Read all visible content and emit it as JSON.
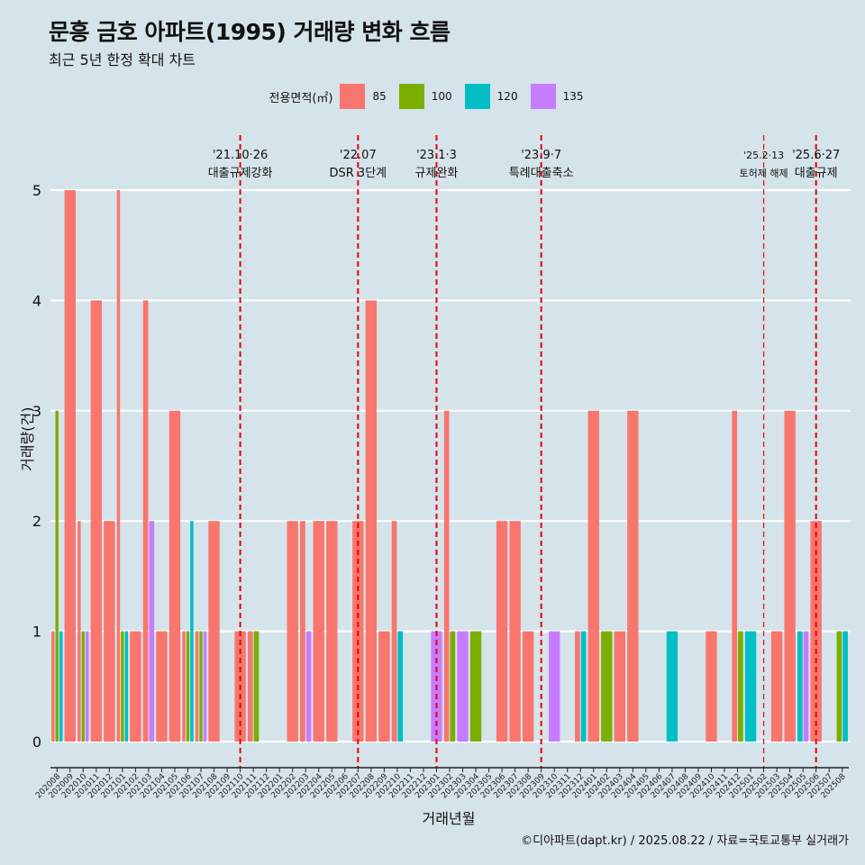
{
  "title": "문흥 금호 아파트(1995) 거래량 변화 흐름",
  "subtitle": "최근 5년 한정 확대 차트",
  "caption": "©디아파트(dapt.kr) / 2025.08.22 / 자료=국토교통부 실거래가",
  "legend": {
    "title": "전용면적(㎡)",
    "items": [
      {
        "label": "85",
        "color": "#F8766D"
      },
      {
        "label": "100",
        "color": "#7CAE00"
      },
      {
        "label": "120",
        "color": "#00BFC4"
      },
      {
        "label": "135",
        "color": "#C77CFF"
      }
    ]
  },
  "chart_data": {
    "type": "bar",
    "xlabel": "거래년월",
    "ylabel": "거래량(건)",
    "ylim": [
      0,
      5
    ],
    "yticks": [
      0,
      1,
      2,
      3,
      4,
      5
    ],
    "grid": true,
    "legend_position": "top",
    "categories": [
      "202008",
      "202009",
      "202010",
      "202011",
      "202012",
      "202101",
      "202102",
      "202103",
      "202104",
      "202105",
      "202106",
      "202107",
      "202108",
      "202109",
      "202110",
      "202111",
      "202112",
      "202201",
      "202202",
      "202203",
      "202204",
      "202205",
      "202206",
      "202207",
      "202208",
      "202209",
      "202210",
      "202211",
      "202212",
      "202301",
      "202302",
      "202303",
      "202304",
      "202305",
      "202306",
      "202307",
      "202308",
      "202309",
      "202310",
      "202311",
      "202312",
      "202401",
      "202402",
      "202403",
      "202404",
      "202405",
      "202406",
      "202407",
      "202408",
      "202409",
      "202410",
      "202411",
      "202412",
      "202501",
      "202502",
      "202503",
      "202504",
      "202505",
      "202506",
      "202507",
      "202508"
    ],
    "series": [
      {
        "name": "85",
        "color": "#F8766D",
        "values": [
          1,
          5,
          2,
          4,
          2,
          5,
          1,
          4,
          1,
          3,
          1,
          1,
          2,
          0,
          1,
          1,
          0,
          0,
          2,
          2,
          2,
          2,
          0,
          2,
          4,
          1,
          2,
          0,
          0,
          0,
          3,
          0,
          0,
          0,
          2,
          2,
          1,
          0,
          0,
          0,
          1,
          3,
          0,
          1,
          3,
          0,
          0,
          0,
          0,
          0,
          1,
          0,
          3,
          0,
          0,
          1,
          3,
          0,
          2,
          0,
          0
        ]
      },
      {
        "name": "100",
        "color": "#7CAE00",
        "values": [
          3,
          0,
          1,
          0,
          0,
          1,
          0,
          0,
          0,
          0,
          1,
          1,
          0,
          0,
          0,
          1,
          0,
          0,
          0,
          0,
          0,
          0,
          0,
          0,
          0,
          0,
          0,
          0,
          0,
          0,
          1,
          0,
          1,
          0,
          0,
          0,
          0,
          0,
          0,
          0,
          0,
          0,
          1,
          0,
          0,
          0,
          0,
          0,
          0,
          0,
          0,
          0,
          1,
          0,
          0,
          0,
          0,
          0,
          0,
          0,
          1
        ]
      },
      {
        "name": "120",
        "color": "#00BFC4",
        "values": [
          1,
          0,
          0,
          0,
          0,
          1,
          0,
          0,
          0,
          0,
          2,
          0,
          0,
          0,
          0,
          0,
          0,
          0,
          0,
          0,
          0,
          0,
          0,
          0,
          0,
          0,
          1,
          0,
          0,
          0,
          0,
          0,
          0,
          0,
          0,
          0,
          0,
          0,
          0,
          0,
          1,
          0,
          0,
          0,
          0,
          0,
          0,
          1,
          0,
          0,
          0,
          0,
          0,
          1,
          0,
          0,
          0,
          1,
          0,
          0,
          1
        ]
      },
      {
        "name": "135",
        "color": "#C77CFF",
        "values": [
          0,
          0,
          1,
          0,
          0,
          0,
          0,
          2,
          0,
          0,
          0,
          1,
          0,
          0,
          0,
          0,
          0,
          0,
          0,
          1,
          0,
          0,
          0,
          0,
          0,
          0,
          0,
          0,
          0,
          1,
          0,
          1,
          0,
          0,
          0,
          0,
          0,
          0,
          1,
          0,
          0,
          0,
          0,
          0,
          0,
          0,
          0,
          0,
          0,
          0,
          0,
          0,
          0,
          0,
          0,
          0,
          0,
          1,
          0,
          0,
          0
        ]
      }
    ],
    "annotations": [
      {
        "category": "202110",
        "date": "'21.10·26",
        "label": "대출규제강화"
      },
      {
        "category": "202207",
        "date": "'22.07",
        "label": "DSR 3단계"
      },
      {
        "category": "202301",
        "date": "'23.1·3",
        "label": "규제완화"
      },
      {
        "category": "202309",
        "date": "'23.9·7",
        "label": "특례대출축소"
      },
      {
        "category": "202502",
        "date": "'25.2·13",
        "label": "토허제 해제"
      },
      {
        "category": "202506",
        "date": "'25.6·27",
        "label": "대출규제"
      }
    ]
  }
}
